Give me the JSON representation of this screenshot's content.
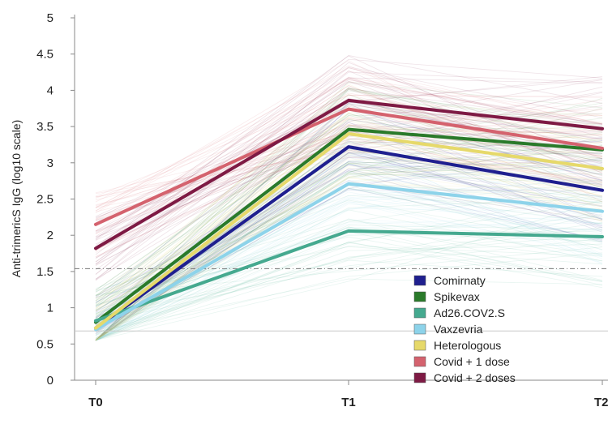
{
  "chart_data": {
    "type": "line",
    "ylabel": "Anti-trimericS IgG (log10 scale)",
    "xlabel": "",
    "categories": [
      "T0",
      "T1",
      "T2"
    ],
    "ylim": [
      0,
      5
    ],
    "yticks": [
      "0",
      "0.5",
      "1",
      "1.5",
      "2",
      "2.5",
      "3",
      "3.5",
      "4",
      "4.5",
      "5"
    ],
    "grid": false,
    "legend_position": "bottom-right",
    "reference_lines": [
      {
        "y": 1.54,
        "style": "dash-dot",
        "color": "#777777"
      },
      {
        "y": 0.68,
        "style": "solid",
        "color": "#c8c8c8"
      }
    ],
    "series": [
      {
        "name": "Comirnaty",
        "color": "#1f1f8f",
        "values": [
          0.72,
          3.22,
          2.62
        ]
      },
      {
        "name": "Spikevax",
        "color": "#2a7a2a",
        "values": [
          0.8,
          3.46,
          3.18
        ]
      },
      {
        "name": "Ad26.COV2.S",
        "color": "#45a98f",
        "values": [
          0.82,
          2.06,
          1.98
        ]
      },
      {
        "name": "Vaxzevria",
        "color": "#8dd3ea",
        "values": [
          0.7,
          2.71,
          2.33
        ]
      },
      {
        "name": "Heterologous",
        "color": "#e6d96a",
        "values": [
          0.72,
          3.4,
          2.92
        ]
      },
      {
        "name": "Covid + 1 dose",
        "color": "#d4626e",
        "values": [
          2.15,
          3.74,
          3.2
        ]
      },
      {
        "name": "Covid + 2 doses",
        "color": "#7e1a44",
        "values": [
          1.82,
          3.86,
          3.47
        ]
      }
    ]
  }
}
